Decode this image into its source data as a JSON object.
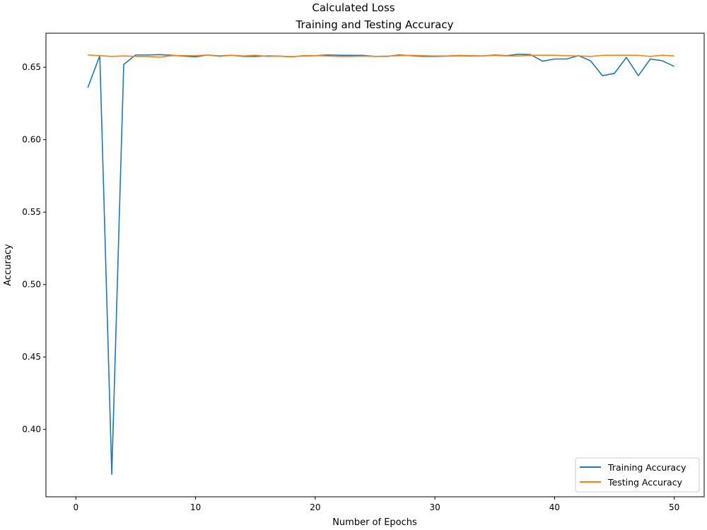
{
  "figure": {
    "suptitle": "Calculated Loss"
  },
  "chart_data": {
    "type": "line",
    "title": "Training and Testing Accuracy",
    "xlabel": "Number of Epochs",
    "ylabel": "Accuracy",
    "xlim": [
      -2.5,
      52.5
    ],
    "ylim": [
      0.3535,
      0.6735
    ],
    "x_ticks": [
      0,
      10,
      20,
      30,
      40,
      50
    ],
    "y_ticks": [
      0.4,
      0.45,
      0.5,
      0.55,
      0.6,
      0.65
    ],
    "y_tick_labels": [
      "0.40",
      "0.45",
      "0.50",
      "0.55",
      "0.60",
      "0.65"
    ],
    "grid": false,
    "legend_position": "lower-right",
    "x": [
      1,
      2,
      3,
      4,
      5,
      6,
      7,
      8,
      9,
      10,
      11,
      12,
      13,
      14,
      15,
      16,
      17,
      18,
      19,
      20,
      21,
      22,
      23,
      24,
      25,
      26,
      27,
      28,
      29,
      30,
      31,
      32,
      33,
      34,
      35,
      36,
      37,
      38,
      39,
      40,
      41,
      42,
      43,
      44,
      45,
      46,
      47,
      48,
      49,
      50
    ],
    "series": [
      {
        "name": "Training Accuracy",
        "color": "#1f77b4",
        "values": [
          0.636,
          0.658,
          0.369,
          0.652,
          0.6585,
          0.6585,
          0.6587,
          0.6583,
          0.6577,
          0.6572,
          0.6585,
          0.6578,
          0.6583,
          0.6575,
          0.6575,
          0.6578,
          0.6577,
          0.6573,
          0.6578,
          0.658,
          0.6585,
          0.6583,
          0.6582,
          0.6582,
          0.6575,
          0.6575,
          0.6585,
          0.658,
          0.6575,
          0.6575,
          0.6577,
          0.658,
          0.6578,
          0.6578,
          0.6585,
          0.658,
          0.659,
          0.6587,
          0.6542,
          0.6557,
          0.6557,
          0.658,
          0.6545,
          0.6442,
          0.6458,
          0.6568,
          0.6442,
          0.6557,
          0.6545,
          0.6506
        ]
      },
      {
        "name": "Testing Accuracy",
        "color": "#ff7f0e",
        "values": [
          0.6585,
          0.658,
          0.6575,
          0.6578,
          0.6575,
          0.6575,
          0.657,
          0.658,
          0.658,
          0.658,
          0.6585,
          0.6575,
          0.6583,
          0.6578,
          0.6583,
          0.6575,
          0.6577,
          0.6572,
          0.658,
          0.658,
          0.6578,
          0.6575,
          0.6575,
          0.6577,
          0.6575,
          0.6577,
          0.658,
          0.6582,
          0.658,
          0.6578,
          0.6578,
          0.6582,
          0.658,
          0.6578,
          0.6582,
          0.6578,
          0.6578,
          0.6582,
          0.6583,
          0.6583,
          0.658,
          0.6578,
          0.6575,
          0.6582,
          0.6583,
          0.6583,
          0.6582,
          0.6575,
          0.6583,
          0.6578
        ]
      }
    ]
  }
}
